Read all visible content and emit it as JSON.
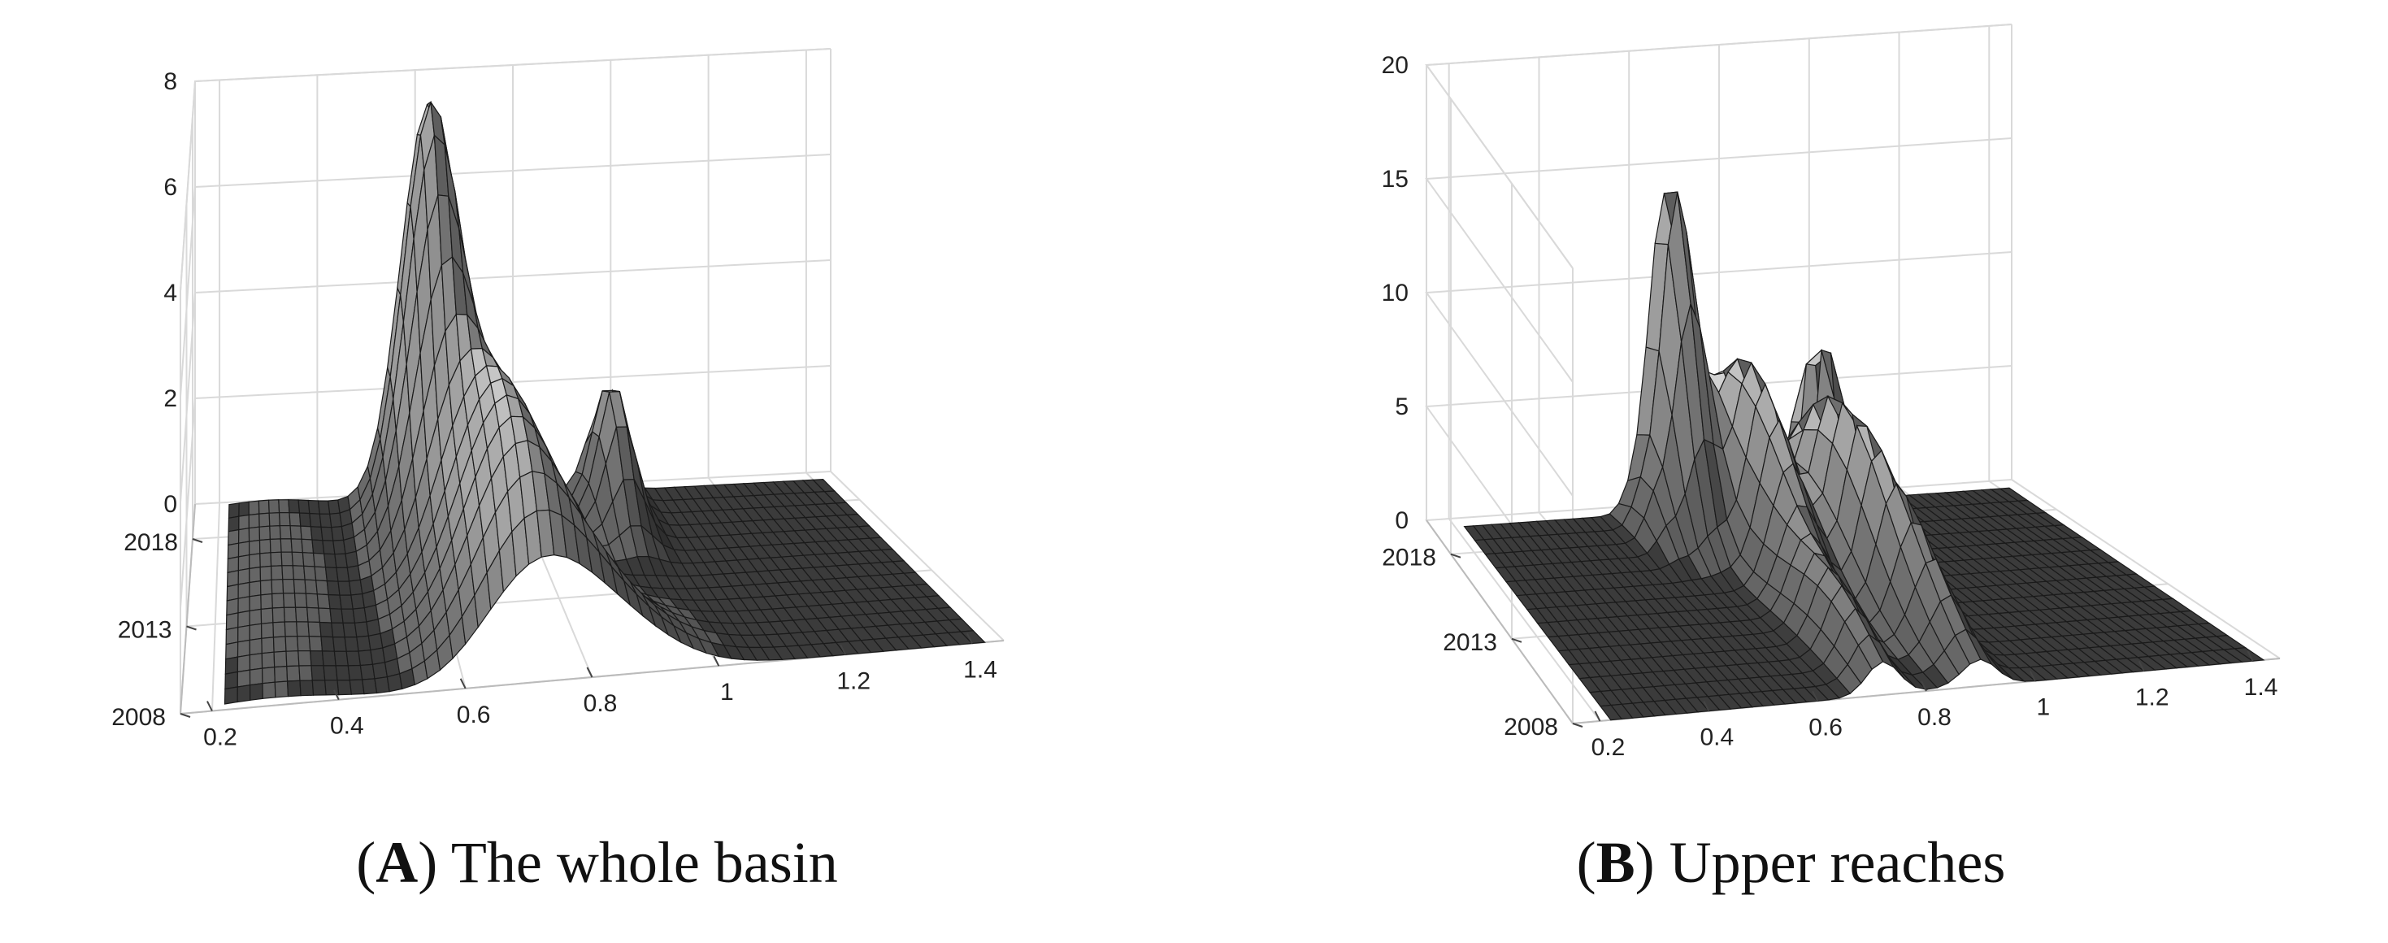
{
  "figures": [
    {
      "id": "A",
      "letter": "A",
      "caption": "The whole basin"
    },
    {
      "id": "B",
      "letter": "B",
      "caption": "Upper reaches"
    }
  ],
  "chart_data": [
    {
      "type": "surface3d",
      "title": "",
      "xlabel": "",
      "ylabel": "",
      "zlabel": "",
      "x_ticks": [
        "0.2",
        "0.4",
        "0.6",
        "0.8",
        "1",
        "1.2",
        "1.4"
      ],
      "y_ticks": [
        "2008",
        "2013",
        "2018"
      ],
      "z_ticks": [
        "0",
        "2",
        "4",
        "6",
        "8"
      ],
      "xlim": [
        0.15,
        1.45
      ],
      "ylim": [
        2008,
        2020
      ],
      "zlim": [
        0,
        8
      ],
      "grid": true,
      "surface_color": "#8c8c8c",
      "peaks": [
        {
          "x": 0.62,
          "year": 2019,
          "z": 7.2,
          "sx": 0.055,
          "sy": 2.5
        },
        {
          "x": 0.7,
          "year": 2013,
          "z": 4.0,
          "sx": 0.08,
          "sy": 3.5
        },
        {
          "x": 0.8,
          "year": 2009,
          "z": 1.5,
          "sx": 0.1,
          "sy": 2.0
        },
        {
          "x": 0.97,
          "year": 2018,
          "z": 2.5,
          "sx": 0.03,
          "sy": 1.5
        },
        {
          "x": 0.3,
          "year": 2014,
          "z": 0.25,
          "sx": 0.1,
          "sy": 6.0
        }
      ]
    },
    {
      "type": "surface3d",
      "title": "",
      "xlabel": "",
      "ylabel": "",
      "zlabel": "",
      "x_ticks": [
        "0.2",
        "0.4",
        "0.6",
        "0.8",
        "1",
        "1.2",
        "1.4"
      ],
      "y_ticks": [
        "2008",
        "2013",
        "2018"
      ],
      "z_ticks": [
        "0",
        "5",
        "10",
        "15",
        "20"
      ],
      "xlim": [
        0.15,
        1.45
      ],
      "ylim": [
        2008,
        2020
      ],
      "zlim": [
        0,
        20
      ],
      "grid": true,
      "surface_color": "#8c8c8c",
      "peaks": [
        {
          "x": 0.66,
          "year": 2019,
          "z": 15.0,
          "sx": 0.035,
          "sy": 1.3
        },
        {
          "x": 0.76,
          "year": 2017,
          "z": 8.0,
          "sx": 0.035,
          "sy": 2.5
        },
        {
          "x": 0.86,
          "year": 2015,
          "z": 7.0,
          "sx": 0.03,
          "sy": 2.5
        },
        {
          "x": 0.95,
          "year": 2018,
          "z": 9.0,
          "sx": 0.018,
          "sy": 1.2
        },
        {
          "x": 0.72,
          "year": 2011,
          "z": 3.0,
          "sx": 0.03,
          "sy": 2.5
        },
        {
          "x": 0.9,
          "year": 2012,
          "z": 4.0,
          "sx": 0.03,
          "sy": 2.5
        },
        {
          "x": 0.58,
          "year": 2018,
          "z": 1.5,
          "sx": 0.02,
          "sy": 1.0
        }
      ]
    }
  ]
}
